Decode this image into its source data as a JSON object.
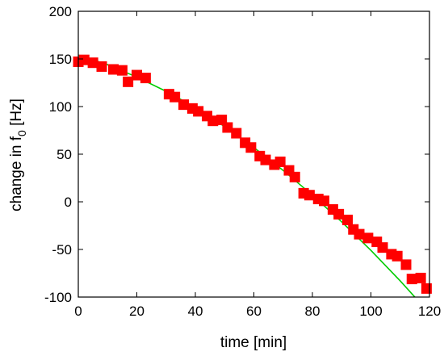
{
  "chart_data": {
    "type": "scatter",
    "xlabel": "time [min]",
    "ylabel": {
      "prefix": "change in f",
      "subscript": "0",
      "suffix": " [Hz]"
    },
    "xlim": [
      0,
      120
    ],
    "ylim": [
      -100,
      200
    ],
    "xticks": [
      "0",
      "20",
      "40",
      "60",
      "80",
      "100",
      "120"
    ],
    "yticks": [
      "-100",
      "-50",
      "0",
      "50",
      "100",
      "150",
      "200"
    ],
    "grid": false,
    "marker_color": "#ff0000",
    "fit_color": "#00cc00",
    "series": [
      {
        "kind": "points",
        "marker": "square",
        "x": [
          0,
          2,
          5,
          8,
          12,
          15,
          17,
          20,
          23,
          31,
          33,
          36,
          39,
          41,
          44,
          46,
          49,
          51,
          54,
          57,
          59,
          62,
          64,
          67,
          69,
          72,
          74,
          77,
          79,
          82,
          84,
          87,
          89,
          92,
          94,
          96,
          99,
          102,
          104,
          107,
          109,
          112,
          114,
          117,
          119
        ],
        "y": [
          147,
          149,
          146,
          142,
          139,
          138,
          126,
          133,
          130,
          113,
          110,
          102,
          98,
          95,
          90,
          85,
          86,
          78,
          72,
          62,
          57,
          48,
          44,
          39,
          42,
          33,
          26,
          9,
          7,
          3,
          1,
          -8,
          -13,
          -19,
          -29,
          -34,
          -38,
          -42,
          -48,
          -55,
          -57,
          -66,
          -81,
          -80,
          -91
        ]
      },
      {
        "kind": "fit",
        "x": [
          0,
          10,
          20,
          30,
          40,
          50,
          60,
          70,
          80,
          90,
          100,
          110,
          120
        ],
        "y": [
          154,
          144,
          131,
          116,
          99,
          79,
          57,
          33,
          7,
          -21,
          -51,
          -83,
          -117
        ]
      }
    ]
  }
}
